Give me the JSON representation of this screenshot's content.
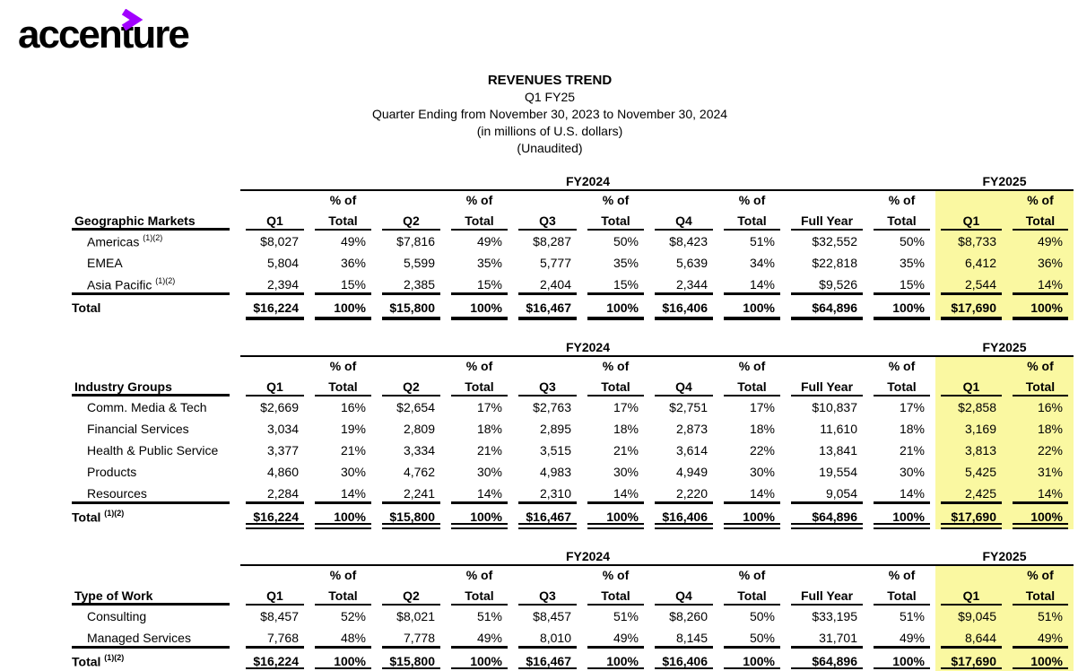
{
  "logo": {
    "text": "accenture",
    "chevron": ">",
    "brand_color": "#A100FF"
  },
  "title": {
    "line1": "REVENUES TREND",
    "line2": "Q1 FY25",
    "line3": "Quarter Ending from November 30, 2023 to November 30, 2024",
    "line4": "(in millions of U.S. dollars)",
    "line5": "(Unaudited)"
  },
  "colors": {
    "highlight_yellow": "#FAF8A1",
    "text": "#000000"
  },
  "column_headers": {
    "fy2024_label": "FY2024",
    "fy2025_label": "FY2025",
    "pct_top": "% of",
    "pct_bottom": "Total",
    "quarters": [
      "Q1",
      "Q2",
      "Q3",
      "Q4",
      "Full Year"
    ],
    "fy2025_quarter": "Q1"
  },
  "tables": [
    {
      "id": "geographic-markets",
      "label": "Geographic Markets",
      "total_style": "single",
      "rows": [
        {
          "label": "Americas",
          "sup": "(1)(2)",
          "values": [
            "$8,027",
            "49%",
            "$7,816",
            "49%",
            "$8,287",
            "50%",
            "$8,423",
            "51%",
            "$32,552",
            "50%",
            "$8,733",
            "49%"
          ]
        },
        {
          "label": "EMEA",
          "sup": "",
          "values": [
            "5,804",
            "36%",
            "5,599",
            "35%",
            "5,777",
            "35%",
            "5,639",
            "34%",
            "$22,818",
            "35%",
            "6,412",
            "36%"
          ]
        },
        {
          "label": "Asia Pacific",
          "sup": "(1)(2)",
          "values": [
            "2,394",
            "15%",
            "2,385",
            "15%",
            "2,404",
            "15%",
            "2,344",
            "14%",
            "$9,526",
            "15%",
            "2,544",
            "14%"
          ]
        }
      ],
      "total": {
        "label": "Total",
        "sup": "",
        "values": [
          "$16,224",
          "100%",
          "$15,800",
          "100%",
          "$16,467",
          "100%",
          "$16,406",
          "100%",
          "$64,896",
          "100%",
          "$17,690",
          "100%"
        ]
      }
    },
    {
      "id": "industry-groups",
      "label": "Industry Groups",
      "total_style": "double",
      "rows": [
        {
          "label": "Comm. Media & Tech",
          "sup": "",
          "values": [
            "$2,669",
            "16%",
            "$2,654",
            "17%",
            "$2,763",
            "17%",
            "$2,751",
            "17%",
            "$10,837",
            "17%",
            "$2,858",
            "16%"
          ]
        },
        {
          "label": "Financial Services",
          "sup": "",
          "values": [
            "3,034",
            "19%",
            "2,809",
            "18%",
            "2,895",
            "18%",
            "2,873",
            "18%",
            "11,610",
            "18%",
            "3,169",
            "18%"
          ]
        },
        {
          "label": "Health & Public Service",
          "sup": "",
          "values": [
            "3,377",
            "21%",
            "3,334",
            "21%",
            "3,515",
            "21%",
            "3,614",
            "22%",
            "13,841",
            "21%",
            "3,813",
            "22%"
          ]
        },
        {
          "label": "Products",
          "sup": "",
          "values": [
            "4,860",
            "30%",
            "4,762",
            "30%",
            "4,983",
            "30%",
            "4,949",
            "30%",
            "19,554",
            "30%",
            "5,425",
            "31%"
          ]
        },
        {
          "label": "Resources",
          "sup": "",
          "values": [
            "2,284",
            "14%",
            "2,241",
            "14%",
            "2,310",
            "14%",
            "2,220",
            "14%",
            "9,054",
            "14%",
            "2,425",
            "14%"
          ]
        }
      ],
      "total": {
        "label": "Total",
        "sup": "(1)(2)",
        "values": [
          "$16,224",
          "100%",
          "$15,800",
          "100%",
          "$16,467",
          "100%",
          "$16,406",
          "100%",
          "$64,896",
          "100%",
          "$17,690",
          "100%"
        ]
      }
    },
    {
      "id": "type-of-work",
      "label": "Type of Work",
      "total_style": "double",
      "rows": [
        {
          "label": "Consulting",
          "sup": "",
          "values": [
            "$8,457",
            "52%",
            "$8,021",
            "51%",
            "$8,457",
            "51%",
            "$8,260",
            "50%",
            "$33,195",
            "51%",
            "$9,045",
            "51%"
          ]
        },
        {
          "label": "Managed Services",
          "sup": "",
          "values": [
            "7,768",
            "48%",
            "7,778",
            "49%",
            "8,010",
            "49%",
            "8,145",
            "50%",
            "31,701",
            "49%",
            "8,644",
            "49%"
          ]
        }
      ],
      "total": {
        "label": "Total",
        "sup": "(1)(2)",
        "values": [
          "$16,224",
          "100%",
          "$15,800",
          "100%",
          "$16,467",
          "100%",
          "$16,406",
          "100%",
          "$64,896",
          "100%",
          "$17,690",
          "100%"
        ]
      }
    }
  ]
}
